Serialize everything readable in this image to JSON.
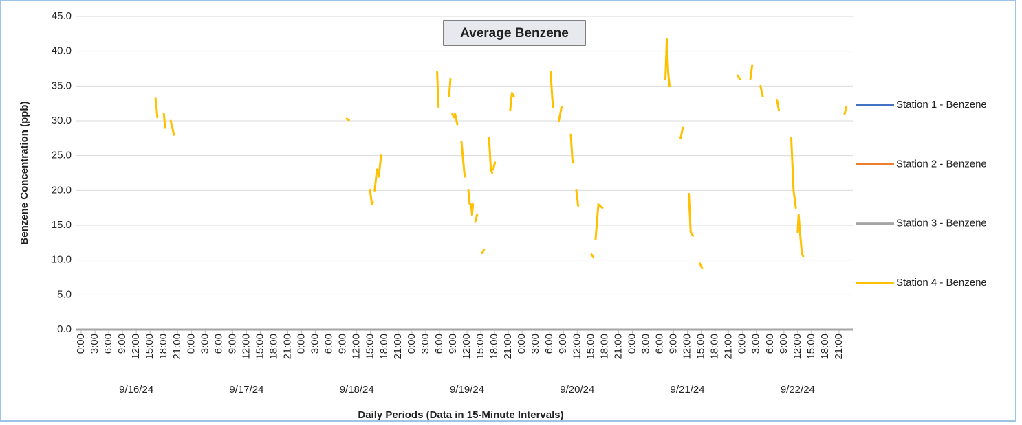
{
  "chart_data": {
    "type": "line",
    "title": "Average Benzene",
    "xlabel": "Daily Periods (Data in 15-Minute Intervals)",
    "ylabel": "Benzene Concentration (ppb)",
    "ylim": [
      0,
      45
    ],
    "yticks": [
      {
        "value": 0,
        "label": "0.0"
      },
      {
        "value": 5,
        "label": "5.0"
      },
      {
        "value": 10,
        "label": "10.0"
      },
      {
        "value": 15,
        "label": "15.0"
      },
      {
        "value": 20,
        "label": "20.0"
      },
      {
        "value": 25,
        "label": "25.0"
      },
      {
        "value": 30,
        "label": "30.0"
      },
      {
        "value": 35,
        "label": "35.0"
      },
      {
        "value": 40,
        "label": "40.0"
      },
      {
        "value": 45,
        "label": "45.0"
      }
    ],
    "xlim": [
      0,
      168
    ],
    "xticks": [
      {
        "value": 0,
        "label": "0:00"
      },
      {
        "value": 3,
        "label": "3:00"
      },
      {
        "value": 6,
        "label": "6:00"
      },
      {
        "value": 9,
        "label": "9:00"
      },
      {
        "value": 12,
        "label": "12:00"
      },
      {
        "value": 15,
        "label": "15:00"
      },
      {
        "value": 18,
        "label": "18:00"
      },
      {
        "value": 21,
        "label": "21:00"
      },
      {
        "value": 24,
        "label": "0:00"
      },
      {
        "value": 27,
        "label": "3:00"
      },
      {
        "value": 30,
        "label": "6:00"
      },
      {
        "value": 33,
        "label": "9:00"
      },
      {
        "value": 36,
        "label": "12:00"
      },
      {
        "value": 39,
        "label": "15:00"
      },
      {
        "value": 42,
        "label": "18:00"
      },
      {
        "value": 45,
        "label": "21:00"
      },
      {
        "value": 48,
        "label": "0:00"
      },
      {
        "value": 51,
        "label": "3:00"
      },
      {
        "value": 54,
        "label": "6:00"
      },
      {
        "value": 57,
        "label": "9:00"
      },
      {
        "value": 60,
        "label": "12:00"
      },
      {
        "value": 63,
        "label": "15:00"
      },
      {
        "value": 66,
        "label": "18:00"
      },
      {
        "value": 69,
        "label": "21:00"
      },
      {
        "value": 72,
        "label": "0:00"
      },
      {
        "value": 75,
        "label": "3:00"
      },
      {
        "value": 78,
        "label": "6:00"
      },
      {
        "value": 81,
        "label": "9:00"
      },
      {
        "value": 84,
        "label": "12:00"
      },
      {
        "value": 87,
        "label": "15:00"
      },
      {
        "value": 90,
        "label": "18:00"
      },
      {
        "value": 93,
        "label": "21:00"
      },
      {
        "value": 96,
        "label": "0:00"
      },
      {
        "value": 99,
        "label": "3:00"
      },
      {
        "value": 102,
        "label": "6:00"
      },
      {
        "value": 105,
        "label": "9:00"
      },
      {
        "value": 108,
        "label": "12:00"
      },
      {
        "value": 111,
        "label": "15:00"
      },
      {
        "value": 114,
        "label": "18:00"
      },
      {
        "value": 117,
        "label": "21:00"
      },
      {
        "value": 120,
        "label": "0:00"
      },
      {
        "value": 123,
        "label": "3:00"
      },
      {
        "value": 126,
        "label": "6:00"
      },
      {
        "value": 129,
        "label": "9:00"
      },
      {
        "value": 132,
        "label": "12:00"
      },
      {
        "value": 135,
        "label": "15:00"
      },
      {
        "value": 138,
        "label": "18:00"
      },
      {
        "value": 141,
        "label": "21:00"
      },
      {
        "value": 144,
        "label": "0:00"
      },
      {
        "value": 147,
        "label": "3:00"
      },
      {
        "value": 150,
        "label": "6:00"
      },
      {
        "value": 153,
        "label": "9:00"
      },
      {
        "value": 156,
        "label": "12:00"
      },
      {
        "value": 159,
        "label": "15:00"
      },
      {
        "value": 162,
        "label": "18:00"
      },
      {
        "value": 165,
        "label": "21:00"
      }
    ],
    "days": [
      "9/16/24",
      "9/17/24",
      "9/18/24",
      "9/19/24",
      "9/20/24",
      "9/21/24",
      "9/22/24"
    ],
    "grid": true,
    "legend": "right",
    "series": [
      {
        "name": "Station 1 - Benzene",
        "color": "#4472c4",
        "x": [],
        "values": []
      },
      {
        "name": "Station 2 - Benzene",
        "color": "#ed7d31",
        "x": [],
        "values": []
      },
      {
        "name": "Station 3 - Benzene",
        "color": "#a5a5a5",
        "x": [],
        "values": []
      },
      {
        "name": "Station 4 - Benzene",
        "color": "#ffc000",
        "x": [
          16.2,
          16.6,
          null,
          18,
          18.3,
          null,
          19.5,
          20.2,
          null,
          57.8,
          58.3,
          null,
          62.9,
          63.3,
          63.5,
          null,
          63.9,
          64.4,
          null,
          64.8,
          65.3,
          null,
          77.5,
          77.8,
          null,
          80.1,
          80.4,
          null,
          80.8,
          81.2,
          81.4,
          81.9,
          null,
          82.8,
          83.5,
          null,
          84.3,
          84.6,
          84.9,
          85.1,
          85.3,
          null,
          85.8,
          86.2,
          null,
          87.3,
          87.7,
          null,
          88.8,
          89.2,
          89.5,
          null,
          89.7,
          90.1,
          null,
          93.4,
          93.8,
          94.2,
          null,
          102.2,
          102.7,
          null,
          104,
          104.3,
          104.6,
          null,
          106.6,
          107,
          107.2,
          null,
          107.8,
          108.2,
          null,
          111.1,
          111.5,
          null,
          112,
          112.6,
          113.5,
          null,
          127.2,
          127.5,
          127.8,
          128.1,
          null,
          130.5,
          131,
          null,
          132.3,
          132.7,
          133.2,
          null,
          134.7,
          135.2,
          null,
          143,
          143.4,
          null,
          145.7,
          146.1,
          null,
          147.9,
          148.4,
          null,
          151.5,
          151.9,
          null,
          154.6,
          155.1,
          155.6,
          null,
          156,
          156.2,
          156.5,
          156.9,
          157.2,
          null,
          166.2,
          166.6
        ],
        "values": [
          33.2,
          30.5,
          null,
          31,
          29,
          null,
          30,
          28,
          null,
          30.3,
          30.1,
          null,
          20,
          18,
          18.3,
          null,
          20,
          23,
          null,
          22,
          25,
          null,
          37,
          32,
          null,
          33.5,
          36,
          null,
          31,
          30.5,
          31,
          29.5,
          null,
          27,
          22,
          null,
          20,
          18,
          18,
          16.5,
          18,
          null,
          15.5,
          16.5,
          null,
          11,
          11.5,
          null,
          27.5,
          23,
          22.5,
          null,
          23,
          24,
          null,
          31.5,
          34,
          33.5,
          null,
          37,
          32,
          null,
          30,
          31,
          32,
          null,
          28,
          24,
          24,
          null,
          20,
          17.8,
          null,
          10.8,
          10.4,
          null,
          13,
          18,
          17.5,
          null,
          36,
          41.7,
          37,
          35,
          null,
          27.5,
          29,
          null,
          19.5,
          14,
          13.5,
          null,
          9.5,
          8.8,
          null,
          36.5,
          36,
          null,
          36,
          38,
          null,
          35,
          33.5,
          null,
          33,
          31.5,
          null,
          27.5,
          20,
          17.5,
          null,
          14,
          16.5,
          14,
          11,
          10.5,
          null,
          31,
          32
        ]
      }
    ]
  }
}
